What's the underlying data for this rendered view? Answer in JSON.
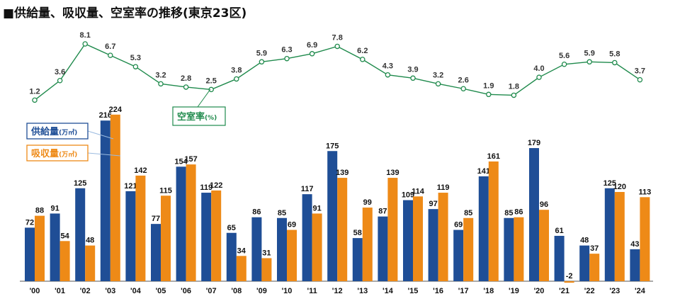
{
  "title": "■供給量、吸収量、空室率の推移(東京23区)",
  "chart_data": {
    "type": "bar",
    "title": "■供給量、吸収量、空室率の推移(東京23区)",
    "categories": [
      "'00",
      "'01",
      "'02",
      "'03",
      "'04",
      "'05",
      "'06",
      "'07",
      "'08",
      "'09",
      "'10",
      "'11",
      "'12",
      "'13",
      "'14",
      "'15",
      "'16",
      "'17",
      "'18",
      "'19",
      "'20",
      "'21",
      "'22",
      "'23",
      "'24"
    ],
    "series": [
      {
        "name": "供給量(万㎡)",
        "color": "#1f4e96",
        "values": [
          72,
          91,
          125,
          216,
          121,
          77,
          154,
          119,
          65,
          86,
          85,
          117,
          175,
          58,
          87,
          109,
          97,
          69,
          141,
          85,
          179,
          61,
          48,
          125,
          43
        ]
      },
      {
        "name": "吸収量(万㎡)",
        "color": "#ee8a17",
        "values": [
          88,
          54,
          48,
          224,
          142,
          115,
          157,
          122,
          34,
          31,
          69,
          91,
          139,
          99,
          139,
          114,
          119,
          85,
          161,
          86,
          96,
          -2,
          37,
          120,
          113
        ]
      }
    ],
    "line_series": {
      "name": "空室率(%)",
      "color": "#1f8a4c",
      "values": [
        1.2,
        3.6,
        8.1,
        6.7,
        5.3,
        3.2,
        2.8,
        2.5,
        3.8,
        5.9,
        6.3,
        6.9,
        7.8,
        6.2,
        4.3,
        3.9,
        3.2,
        2.6,
        1.9,
        1.8,
        4.0,
        5.6,
        5.9,
        5.8,
        3.7
      ]
    },
    "legend": {
      "supply": {
        "main": "供給量",
        "unit": "(万㎡)"
      },
      "absorption": {
        "main": "吸収量",
        "unit": "(万㎡)"
      },
      "vacancy": {
        "main": "空室率",
        "unit": "(%)"
      }
    },
    "xlabel": "",
    "ylabel": ""
  }
}
